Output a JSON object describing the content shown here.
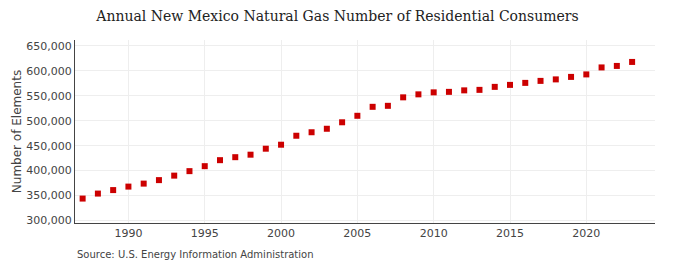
{
  "chart_data": {
    "type": "scatter",
    "title": "Annual New Mexico Natural Gas Number of Residential Consumers",
    "ylabel": "Number of Elements",
    "annotations": [
      "Source: U.S. Energy Information Administration"
    ],
    "x": [
      1987,
      1988,
      1989,
      1990,
      1991,
      1992,
      1993,
      1994,
      1995,
      1996,
      1997,
      1998,
      1999,
      2000,
      2001,
      2002,
      2003,
      2004,
      2005,
      2006,
      2007,
      2008,
      2009,
      2010,
      2011,
      2012,
      2013,
      2014,
      2015,
      2016,
      2017,
      2018,
      2019,
      2020,
      2021,
      2022,
      2023
    ],
    "values": [
      344000,
      354000,
      361000,
      368000,
      374000,
      381000,
      390000,
      399000,
      409000,
      421000,
      427000,
      432000,
      444000,
      452000,
      470000,
      477000,
      484000,
      497000,
      510000,
      528000,
      530000,
      547000,
      553000,
      557000,
      558000,
      561000,
      562000,
      568000,
      572000,
      576000,
      580000,
      583000,
      588000,
      593000,
      607000,
      610000,
      618000
    ],
    "color": "#cc0000",
    "marker": "square",
    "xlim": [
      1986.5,
      2024.5
    ],
    "ylim": [
      295000,
      662000
    ],
    "xticks": [
      1990,
      1995,
      2000,
      2005,
      2010,
      2015,
      2020
    ],
    "yticks": [
      {
        "value": 300000,
        "label": "300,000"
      },
      {
        "value": 350000,
        "label": "350,000"
      },
      {
        "value": 400000,
        "label": "400,000"
      },
      {
        "value": 450000,
        "label": "450,000"
      },
      {
        "value": 500000,
        "label": "500,000"
      },
      {
        "value": 550000,
        "label": "550,000"
      },
      {
        "value": 600000,
        "label": "600,000"
      },
      {
        "value": 650000,
        "label": "650,000"
      }
    ],
    "grid": true
  }
}
